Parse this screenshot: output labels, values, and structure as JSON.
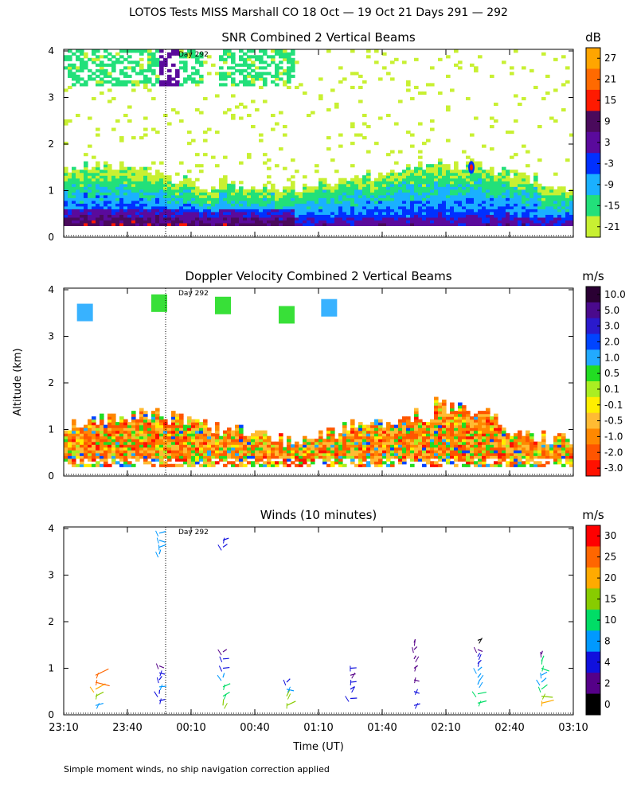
{
  "figure": {
    "title": "LOTOS Tests MISS Marshall CO  18 Oct — 19 Oct 21 Days 291 — 292",
    "ylabel": "Altitude (km)",
    "xlabel": "Time (UT)",
    "footnote": "Simple moment winds, no ship navigation correction applied",
    "day_marker": {
      "time": "23:58",
      "label": "Day 292"
    }
  },
  "chart_data": [
    {
      "type": "heatmap",
      "title": "SNR Combined 2 Vertical Beams",
      "unit": "dB",
      "x_ticks": [
        "23:10",
        "23:40",
        "00:10",
        "00:40",
        "01:10",
        "01:40",
        "02:10",
        "02:40",
        "03:10"
      ],
      "ylim": [
        0,
        4
      ],
      "y_ticks": [
        0,
        1,
        2,
        3,
        4
      ],
      "colorbar": {
        "labels": [
          "27",
          "21",
          "15",
          "9",
          "3",
          "-3",
          "-9",
          "-15",
          "-21"
        ],
        "colors": [
          "#ffa500",
          "#ff6a00",
          "#ff1a00",
          "#4a0a5c",
          "#5a0a9c",
          "#0030ff",
          "#1ab0ff",
          "#22e07a",
          "#c8f032"
        ]
      },
      "description_values": {
        "strong_layer_km": [
          0.3,
          0.8
        ],
        "time_range": [
          "23:10",
          "03:10"
        ]
      }
    },
    {
      "type": "heatmap",
      "title": "Doppler Velocity Combined 2 Vertical Beams",
      "unit": "m/s",
      "x_ticks": [
        "23:10",
        "23:40",
        "00:10",
        "00:40",
        "01:10",
        "01:40",
        "02:10",
        "02:40",
        "03:10"
      ],
      "ylim": [
        0,
        4
      ],
      "y_ticks": [
        0,
        1,
        2,
        3,
        4
      ],
      "colorbar": {
        "labels": [
          "10.0",
          "5.0",
          "3.0",
          "2.0",
          "1.0",
          "0.5",
          "0.1",
          "-0.1",
          "-0.5",
          "-1.0",
          "-2.0",
          "-3.0"
        ],
        "colors": [
          "#2a0033",
          "#4a0a8c",
          "#2a1acc",
          "#0044ff",
          "#22aaff",
          "#22dd22",
          "#aaee22",
          "#ffee00",
          "#ffbb33",
          "#ff8800",
          "#ff5500",
          "#ff1100"
        ]
      }
    },
    {
      "type": "scatter",
      "title": "Winds (10 minutes)",
      "unit": "m/s",
      "x_ticks": [
        "23:10",
        "23:40",
        "00:10",
        "00:40",
        "01:10",
        "01:40",
        "02:10",
        "02:40",
        "03:10"
      ],
      "ylim": [
        0,
        4
      ],
      "y_ticks": [
        0,
        1,
        2,
        3,
        4
      ],
      "colorbar": {
        "labels": [
          "30",
          "25",
          "20",
          "15",
          "10",
          "8",
          "4",
          "2",
          "0"
        ],
        "colors": [
          "#ff0000",
          "#ff6600",
          "#ffaa00",
          "#88cc00",
          "#00dd66",
          "#0099ff",
          "#1010dd",
          "#550088",
          "#000000"
        ]
      },
      "profiles": [
        {
          "time": "23:25",
          "alts": [
            0.2,
            0.4,
            0.55,
            0.7,
            0.85
          ],
          "speeds": [
            8,
            12,
            18,
            22,
            25
          ]
        },
        {
          "time": "23:55",
          "alts": [
            0.3,
            0.45,
            0.6,
            0.75,
            0.9,
            1.05
          ],
          "speeds": [
            3,
            4,
            5,
            4,
            3,
            2
          ]
        },
        {
          "time": "23:55",
          "alts": [
            3.45,
            3.6,
            3.75,
            3.9
          ],
          "speeds": [
            6,
            6,
            5,
            5
          ]
        },
        {
          "time": "00:25",
          "alts": [
            0.2,
            0.4,
            0.6,
            0.8,
            1.0,
            1.2,
            1.35
          ],
          "speeds": [
            12,
            10,
            9,
            6,
            4,
            3,
            2
          ]
        },
        {
          "time": "00:25",
          "alts": [
            3.6,
            3.75
          ],
          "speeds": [
            4,
            4
          ]
        },
        {
          "time": "00:55",
          "alts": [
            0.2,
            0.4,
            0.55,
            0.7
          ],
          "speeds": [
            14,
            12,
            6,
            4
          ]
        },
        {
          "time": "01:25",
          "alts": [
            0.35,
            0.55,
            0.7,
            0.85,
            1.0
          ],
          "speeds": [
            4,
            3,
            3,
            2,
            3
          ]
        },
        {
          "time": "01:55",
          "alts": [
            0.2,
            0.5,
            0.75,
            1.0,
            1.2,
            1.4,
            1.55
          ],
          "speeds": [
            4,
            3,
            2,
            2,
            2,
            2,
            2
          ]
        },
        {
          "time": "02:25",
          "alts": [
            0.25,
            0.45,
            0.65,
            0.8,
            0.95,
            1.1,
            1.25,
            1.4,
            1.6
          ],
          "speeds": [
            10,
            9,
            8,
            6,
            5,
            4,
            3,
            2,
            0
          ]
        },
        {
          "time": "02:55",
          "alts": [
            0.25,
            0.4,
            0.55,
            0.7,
            0.85,
            1.0,
            1.15,
            1.3
          ],
          "speeds": [
            18,
            14,
            10,
            8,
            6,
            9,
            10,
            2
          ]
        }
      ]
    }
  ]
}
